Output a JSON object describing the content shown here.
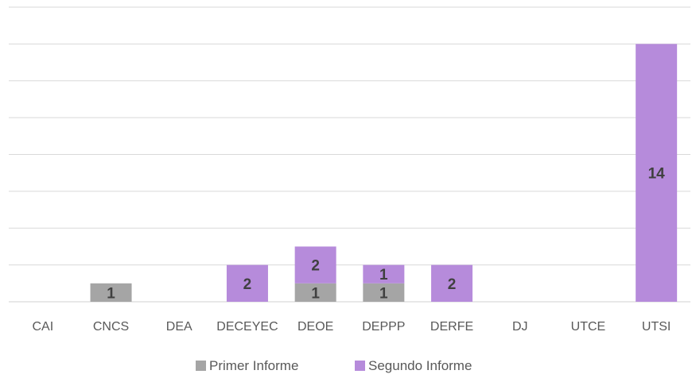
{
  "chart_data": {
    "type": "bar",
    "stacked": true,
    "categories": [
      "CAI",
      "CNCS",
      "DEA",
      "DECEYEC",
      "DEOE",
      "DEPPP",
      "DERFE",
      "DJ",
      "UTCE",
      "UTSI"
    ],
    "series": [
      {
        "name": "Primer Informe",
        "color": "#A5A5A5",
        "values": [
          0,
          1,
          0,
          0,
          1,
          1,
          0,
          0,
          0,
          0
        ]
      },
      {
        "name": "Segundo Informe",
        "color": "#B68BDB",
        "values": [
          0,
          0,
          0,
          2,
          2,
          1,
          2,
          0,
          0,
          14
        ]
      }
    ],
    "title": "",
    "xlabel": "",
    "ylabel": "",
    "ylim": [
      0,
      16
    ],
    "grid": true,
    "legend": "bottom",
    "data_labels": true
  }
}
